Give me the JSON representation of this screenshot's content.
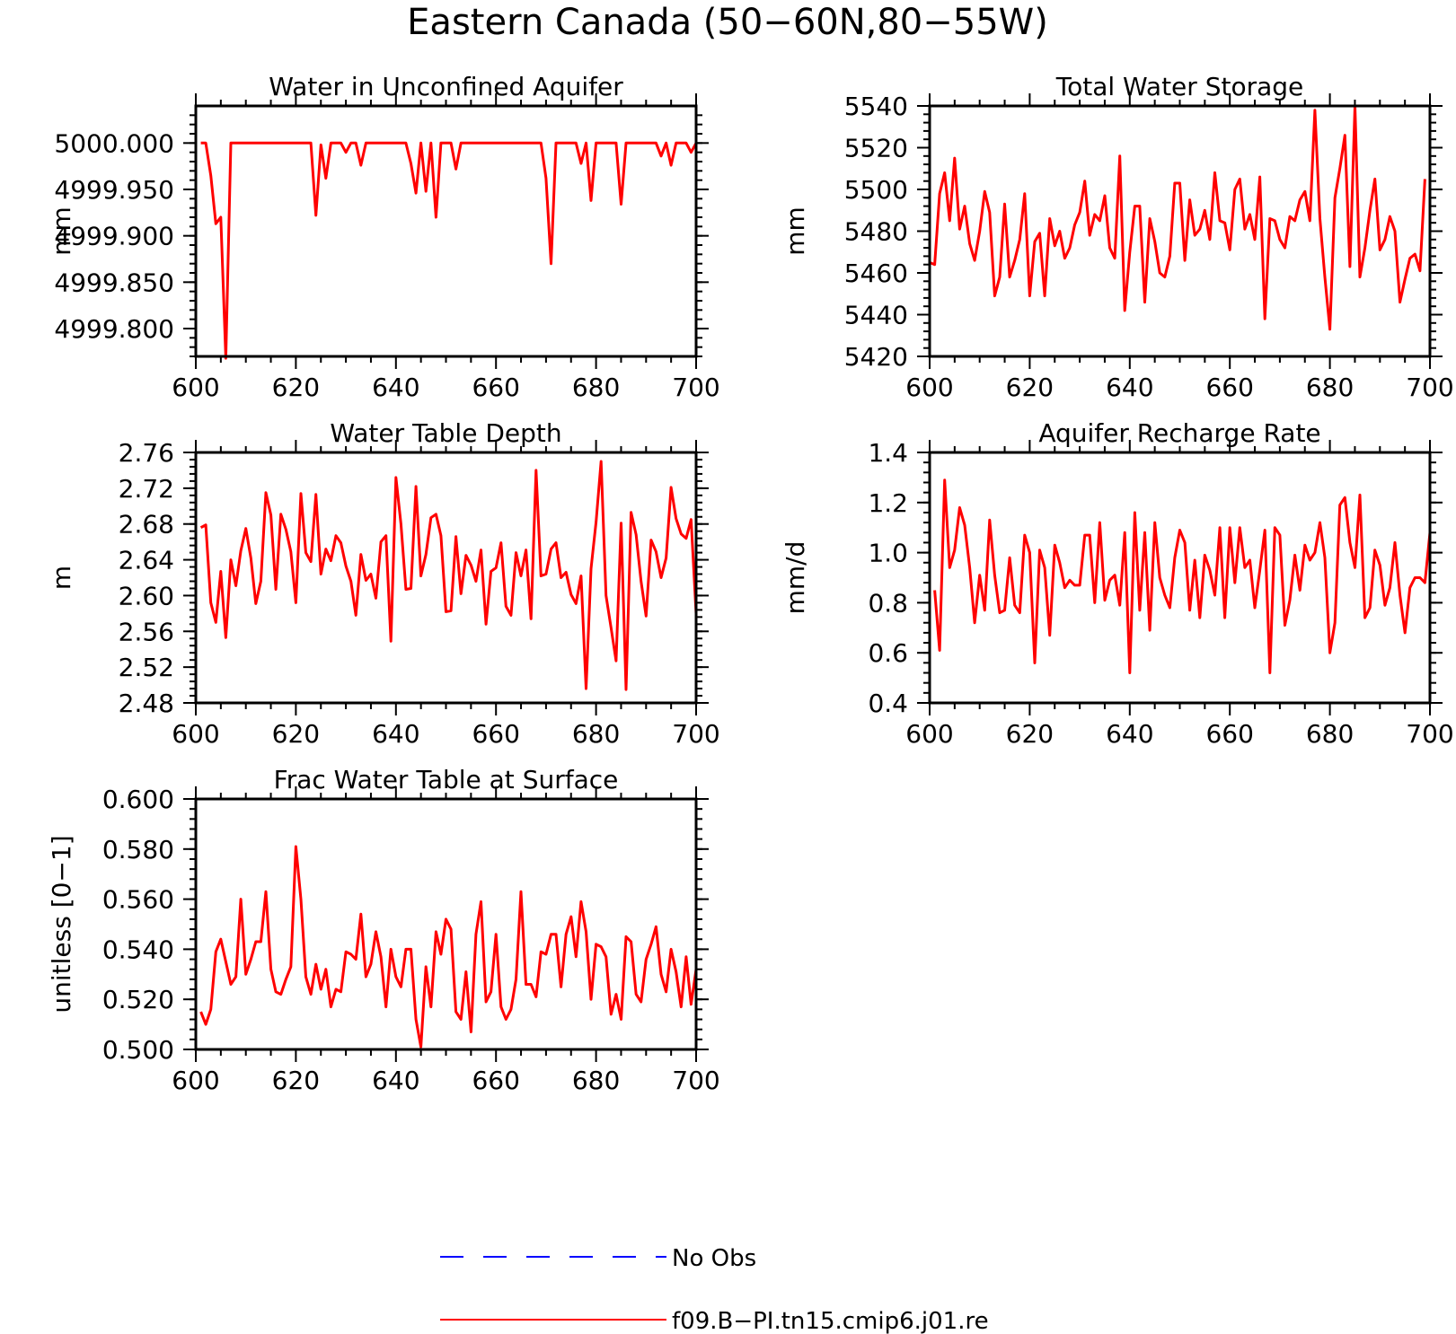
{
  "title": "Eastern Canada (50−60N,80−55W)",
  "colors": {
    "model_line": "#ff0000",
    "obs_line": "#0000ff",
    "axes": "#000000"
  },
  "legend": {
    "entries": [
      {
        "label": "No Obs",
        "style": "dashed",
        "color": "#0000ff"
      },
      {
        "label": "f09.B−PI.tn15.cmip6.j01.re",
        "style": "solid",
        "color": "#ff0000"
      }
    ]
  },
  "chart_data": [
    {
      "type": "line",
      "title": "Water in Unconfined Aquifer",
      "ylabel": "mm",
      "xlabel": "",
      "xlim": [
        600,
        700
      ],
      "ylim": [
        4999.77,
        5000.04
      ],
      "xticks": [
        "600",
        "620",
        "640",
        "660",
        "680",
        "700"
      ],
      "yticks": [
        {
          "v": 4999.8,
          "label": "4999.800"
        },
        {
          "v": 4999.85,
          "label": "4999.850"
        },
        {
          "v": 4999.9,
          "label": "4999.900"
        },
        {
          "v": 4999.95,
          "label": "4999.950"
        },
        {
          "v": 5000.0,
          "label": "5000.000"
        }
      ],
      "series": [
        {
          "x_start": 601,
          "values": [
            5000.0,
            5000.0,
            4999.965,
            4999.913,
            4999.92,
            4999.768,
            5000.0,
            5000.0,
            5000.0,
            5000.0,
            5000.0,
            5000.0,
            5000.0,
            5000.0,
            5000.0,
            5000.0,
            5000.0,
            5000.0,
            5000.0,
            5000.0,
            5000.0,
            5000.0,
            5000.0,
            4999.922,
            4999.998,
            4999.962,
            5000.0,
            5000.0,
            5000.0,
            4999.99,
            5000.0,
            5000.0,
            4999.976,
            5000.0,
            5000.0,
            5000.0,
            5000.0,
            5000.0,
            5000.0,
            5000.0,
            5000.0,
            5000.0,
            4999.978,
            4999.946,
            5000.0,
            4999.948,
            5000.0,
            4999.92,
            5000.0,
            5000.0,
            5000.0,
            4999.972,
            5000.0,
            5000.0,
            5000.0,
            5000.0,
            5000.0,
            5000.0,
            5000.0,
            5000.0,
            5000.0,
            5000.0,
            5000.0,
            5000.0,
            5000.0,
            5000.0,
            5000.0,
            5000.0,
            5000.0,
            4999.962,
            4999.87,
            5000.0,
            5000.0,
            5000.0,
            5000.0,
            5000.0,
            4999.978,
            5000.0,
            4999.938,
            5000.0,
            5000.0,
            5000.0,
            5000.0,
            5000.0,
            4999.934,
            5000.0,
            5000.0,
            5000.0,
            5000.0,
            5000.0,
            5000.0,
            5000.0,
            4999.986,
            5000.0,
            4999.976,
            5000.0,
            5000.0,
            5000.0,
            4999.99,
            5000.0
          ]
        }
      ]
    },
    {
      "type": "line",
      "title": "Total Water Storage",
      "ylabel": "mm",
      "xlabel": "",
      "xlim": [
        600,
        700
      ],
      "ylim": [
        5420,
        5540
      ],
      "xticks": [
        "600",
        "620",
        "640",
        "660",
        "680",
        "700"
      ],
      "yticks": [
        {
          "v": 5420,
          "label": "5420"
        },
        {
          "v": 5440,
          "label": "5440"
        },
        {
          "v": 5460,
          "label": "5460"
        },
        {
          "v": 5480,
          "label": "5480"
        },
        {
          "v": 5500,
          "label": "5500"
        },
        {
          "v": 5520,
          "label": "5520"
        },
        {
          "v": 5540,
          "label": "5540"
        }
      ],
      "series": [
        {
          "x_start": 600,
          "values": [
            5465,
            5464,
            5498,
            5508,
            5485,
            5515,
            5481,
            5492,
            5474,
            5466,
            5480,
            5499,
            5489,
            5449,
            5458,
            5493,
            5458,
            5466,
            5476,
            5498,
            5449,
            5475,
            5479,
            5449,
            5486,
            5473,
            5480,
            5467,
            5472,
            5483,
            5489,
            5504,
            5478,
            5488,
            5485,
            5497,
            5472,
            5467,
            5516,
            5442,
            5470,
            5492,
            5492,
            5446,
            5486,
            5475,
            5460,
            5458,
            5468,
            5503,
            5503,
            5466,
            5495,
            5478,
            5481,
            5490,
            5476,
            5508,
            5485,
            5484,
            5471,
            5500,
            5505,
            5481,
            5488,
            5476,
            5506,
            5438,
            5486,
            5485,
            5476,
            5472,
            5487,
            5485,
            5495,
            5499,
            5485,
            5538,
            5486,
            5458,
            5433,
            5496,
            5510,
            5526,
            5463,
            5540,
            5458,
            5472,
            5490,
            5505,
            5471,
            5476,
            5487,
            5480,
            5446,
            5457,
            5467,
            5469,
            5461,
            5505
          ]
        }
      ]
    },
    {
      "type": "line",
      "title": "Water Table Depth",
      "ylabel": "m",
      "xlabel": "",
      "xlim": [
        600,
        700
      ],
      "ylim": [
        2.48,
        2.76
      ],
      "xticks": [
        "600",
        "620",
        "640",
        "660",
        "680",
        "700"
      ],
      "yticks": [
        {
          "v": 2.48,
          "label": "2.48"
        },
        {
          "v": 2.52,
          "label": "2.52"
        },
        {
          "v": 2.56,
          "label": "2.56"
        },
        {
          "v": 2.6,
          "label": "2.60"
        },
        {
          "v": 2.64,
          "label": "2.64"
        },
        {
          "v": 2.68,
          "label": "2.68"
        },
        {
          "v": 2.72,
          "label": "2.72"
        },
        {
          "v": 2.76,
          "label": "2.76"
        }
      ],
      "series": [
        {
          "x_start": 601,
          "values": [
            2.676,
            2.679,
            2.592,
            2.57,
            2.627,
            2.553,
            2.64,
            2.611,
            2.65,
            2.675,
            2.642,
            2.591,
            2.616,
            2.715,
            2.69,
            2.607,
            2.691,
            2.674,
            2.649,
            2.592,
            2.714,
            2.648,
            2.638,
            2.713,
            2.624,
            2.652,
            2.639,
            2.667,
            2.659,
            2.633,
            2.616,
            2.578,
            2.646,
            2.617,
            2.624,
            2.597,
            2.66,
            2.667,
            2.549,
            2.732,
            2.68,
            2.607,
            2.608,
            2.722,
            2.622,
            2.646,
            2.687,
            2.691,
            2.667,
            2.582,
            2.583,
            2.666,
            2.602,
            2.645,
            2.634,
            2.616,
            2.651,
            2.568,
            2.627,
            2.631,
            2.659,
            2.588,
            2.578,
            2.648,
            2.622,
            2.651,
            2.574,
            2.74,
            2.622,
            2.624,
            2.652,
            2.659,
            2.62,
            2.626,
            2.601,
            2.591,
            2.622,
            2.496,
            2.63,
            2.682,
            2.75,
            2.6,
            2.564,
            2.527,
            2.681,
            2.495,
            2.693,
            2.668,
            2.616,
            2.577,
            2.662,
            2.649,
            2.62,
            2.642,
            2.721,
            2.686,
            2.669,
            2.664,
            2.685,
            2.58
          ]
        }
      ]
    },
    {
      "type": "line",
      "title": "Aquifer Recharge Rate",
      "ylabel": "mm/d",
      "xlabel": "",
      "xlim": [
        600,
        700
      ],
      "ylim": [
        0.4,
        1.4
      ],
      "xticks": [
        "600",
        "620",
        "640",
        "660",
        "680",
        "700"
      ],
      "yticks": [
        {
          "v": 0.4,
          "label": "0.4"
        },
        {
          "v": 0.6,
          "label": "0.6"
        },
        {
          "v": 0.8,
          "label": "0.8"
        },
        {
          "v": 1.0,
          "label": "1.0"
        },
        {
          "v": 1.2,
          "label": "1.2"
        },
        {
          "v": 1.4,
          "label": "1.4"
        }
      ],
      "series": [
        {
          "x_start": 601,
          "values": [
            0.85,
            0.61,
            1.29,
            0.94,
            1.01,
            1.18,
            1.11,
            0.94,
            0.72,
            0.91,
            0.77,
            1.13,
            0.91,
            0.76,
            0.77,
            0.98,
            0.79,
            0.76,
            1.07,
            1.0,
            0.56,
            1.01,
            0.94,
            0.67,
            1.03,
            0.96,
            0.86,
            0.89,
            0.87,
            0.87,
            1.07,
            1.07,
            0.8,
            1.12,
            0.81,
            0.89,
            0.91,
            0.79,
            1.08,
            0.52,
            1.16,
            0.77,
            1.08,
            0.69,
            1.12,
            0.9,
            0.83,
            0.78,
            0.98,
            1.09,
            1.04,
            0.77,
            0.97,
            0.74,
            0.99,
            0.93,
            0.83,
            1.1,
            0.74,
            1.1,
            0.88,
            1.1,
            0.94,
            0.97,
            0.78,
            0.93,
            1.09,
            0.52,
            1.1,
            1.07,
            0.71,
            0.81,
            0.99,
            0.85,
            1.03,
            0.97,
            1.0,
            1.12,
            0.98,
            0.6,
            0.72,
            1.19,
            1.22,
            1.04,
            0.94,
            1.23,
            0.74,
            0.78,
            1.01,
            0.95,
            0.79,
            0.86,
            1.04,
            0.83,
            0.68,
            0.86,
            0.9,
            0.9,
            0.88,
            1.08
          ]
        }
      ]
    },
    {
      "type": "line",
      "title": "Frac Water Table at Surface",
      "ylabel": "unitless [0−1]",
      "xlabel": "",
      "xlim": [
        600,
        700
      ],
      "ylim": [
        0.5,
        0.6
      ],
      "xticks": [
        "600",
        "620",
        "640",
        "660",
        "680",
        "700"
      ],
      "yticks": [
        {
          "v": 0.5,
          "label": "0.500"
        },
        {
          "v": 0.52,
          "label": "0.520"
        },
        {
          "v": 0.54,
          "label": "0.540"
        },
        {
          "v": 0.56,
          "label": "0.560"
        },
        {
          "v": 0.58,
          "label": "0.580"
        },
        {
          "v": 0.6,
          "label": "0.600"
        }
      ],
      "series": [
        {
          "x_start": 601,
          "values": [
            0.515,
            0.51,
            0.516,
            0.539,
            0.544,
            0.535,
            0.526,
            0.529,
            0.56,
            0.53,
            0.536,
            0.543,
            0.543,
            0.563,
            0.532,
            0.523,
            0.522,
            0.528,
            0.533,
            0.581,
            0.56,
            0.529,
            0.522,
            0.534,
            0.524,
            0.532,
            0.517,
            0.524,
            0.523,
            0.539,
            0.538,
            0.536,
            0.554,
            0.529,
            0.534,
            0.547,
            0.537,
            0.517,
            0.54,
            0.529,
            0.525,
            0.54,
            0.54,
            0.512,
            0.501,
            0.533,
            0.517,
            0.547,
            0.538,
            0.552,
            0.548,
            0.515,
            0.512,
            0.531,
            0.507,
            0.546,
            0.559,
            0.519,
            0.523,
            0.546,
            0.517,
            0.512,
            0.516,
            0.528,
            0.563,
            0.526,
            0.526,
            0.521,
            0.539,
            0.538,
            0.546,
            0.546,
            0.525,
            0.546,
            0.553,
            0.537,
            0.559,
            0.547,
            0.52,
            0.542,
            0.541,
            0.537,
            0.514,
            0.522,
            0.512,
            0.545,
            0.543,
            0.522,
            0.519,
            0.536,
            0.542,
            0.549,
            0.53,
            0.523,
            0.54,
            0.531,
            0.517,
            0.537,
            0.518,
            0.532
          ]
        }
      ]
    }
  ]
}
